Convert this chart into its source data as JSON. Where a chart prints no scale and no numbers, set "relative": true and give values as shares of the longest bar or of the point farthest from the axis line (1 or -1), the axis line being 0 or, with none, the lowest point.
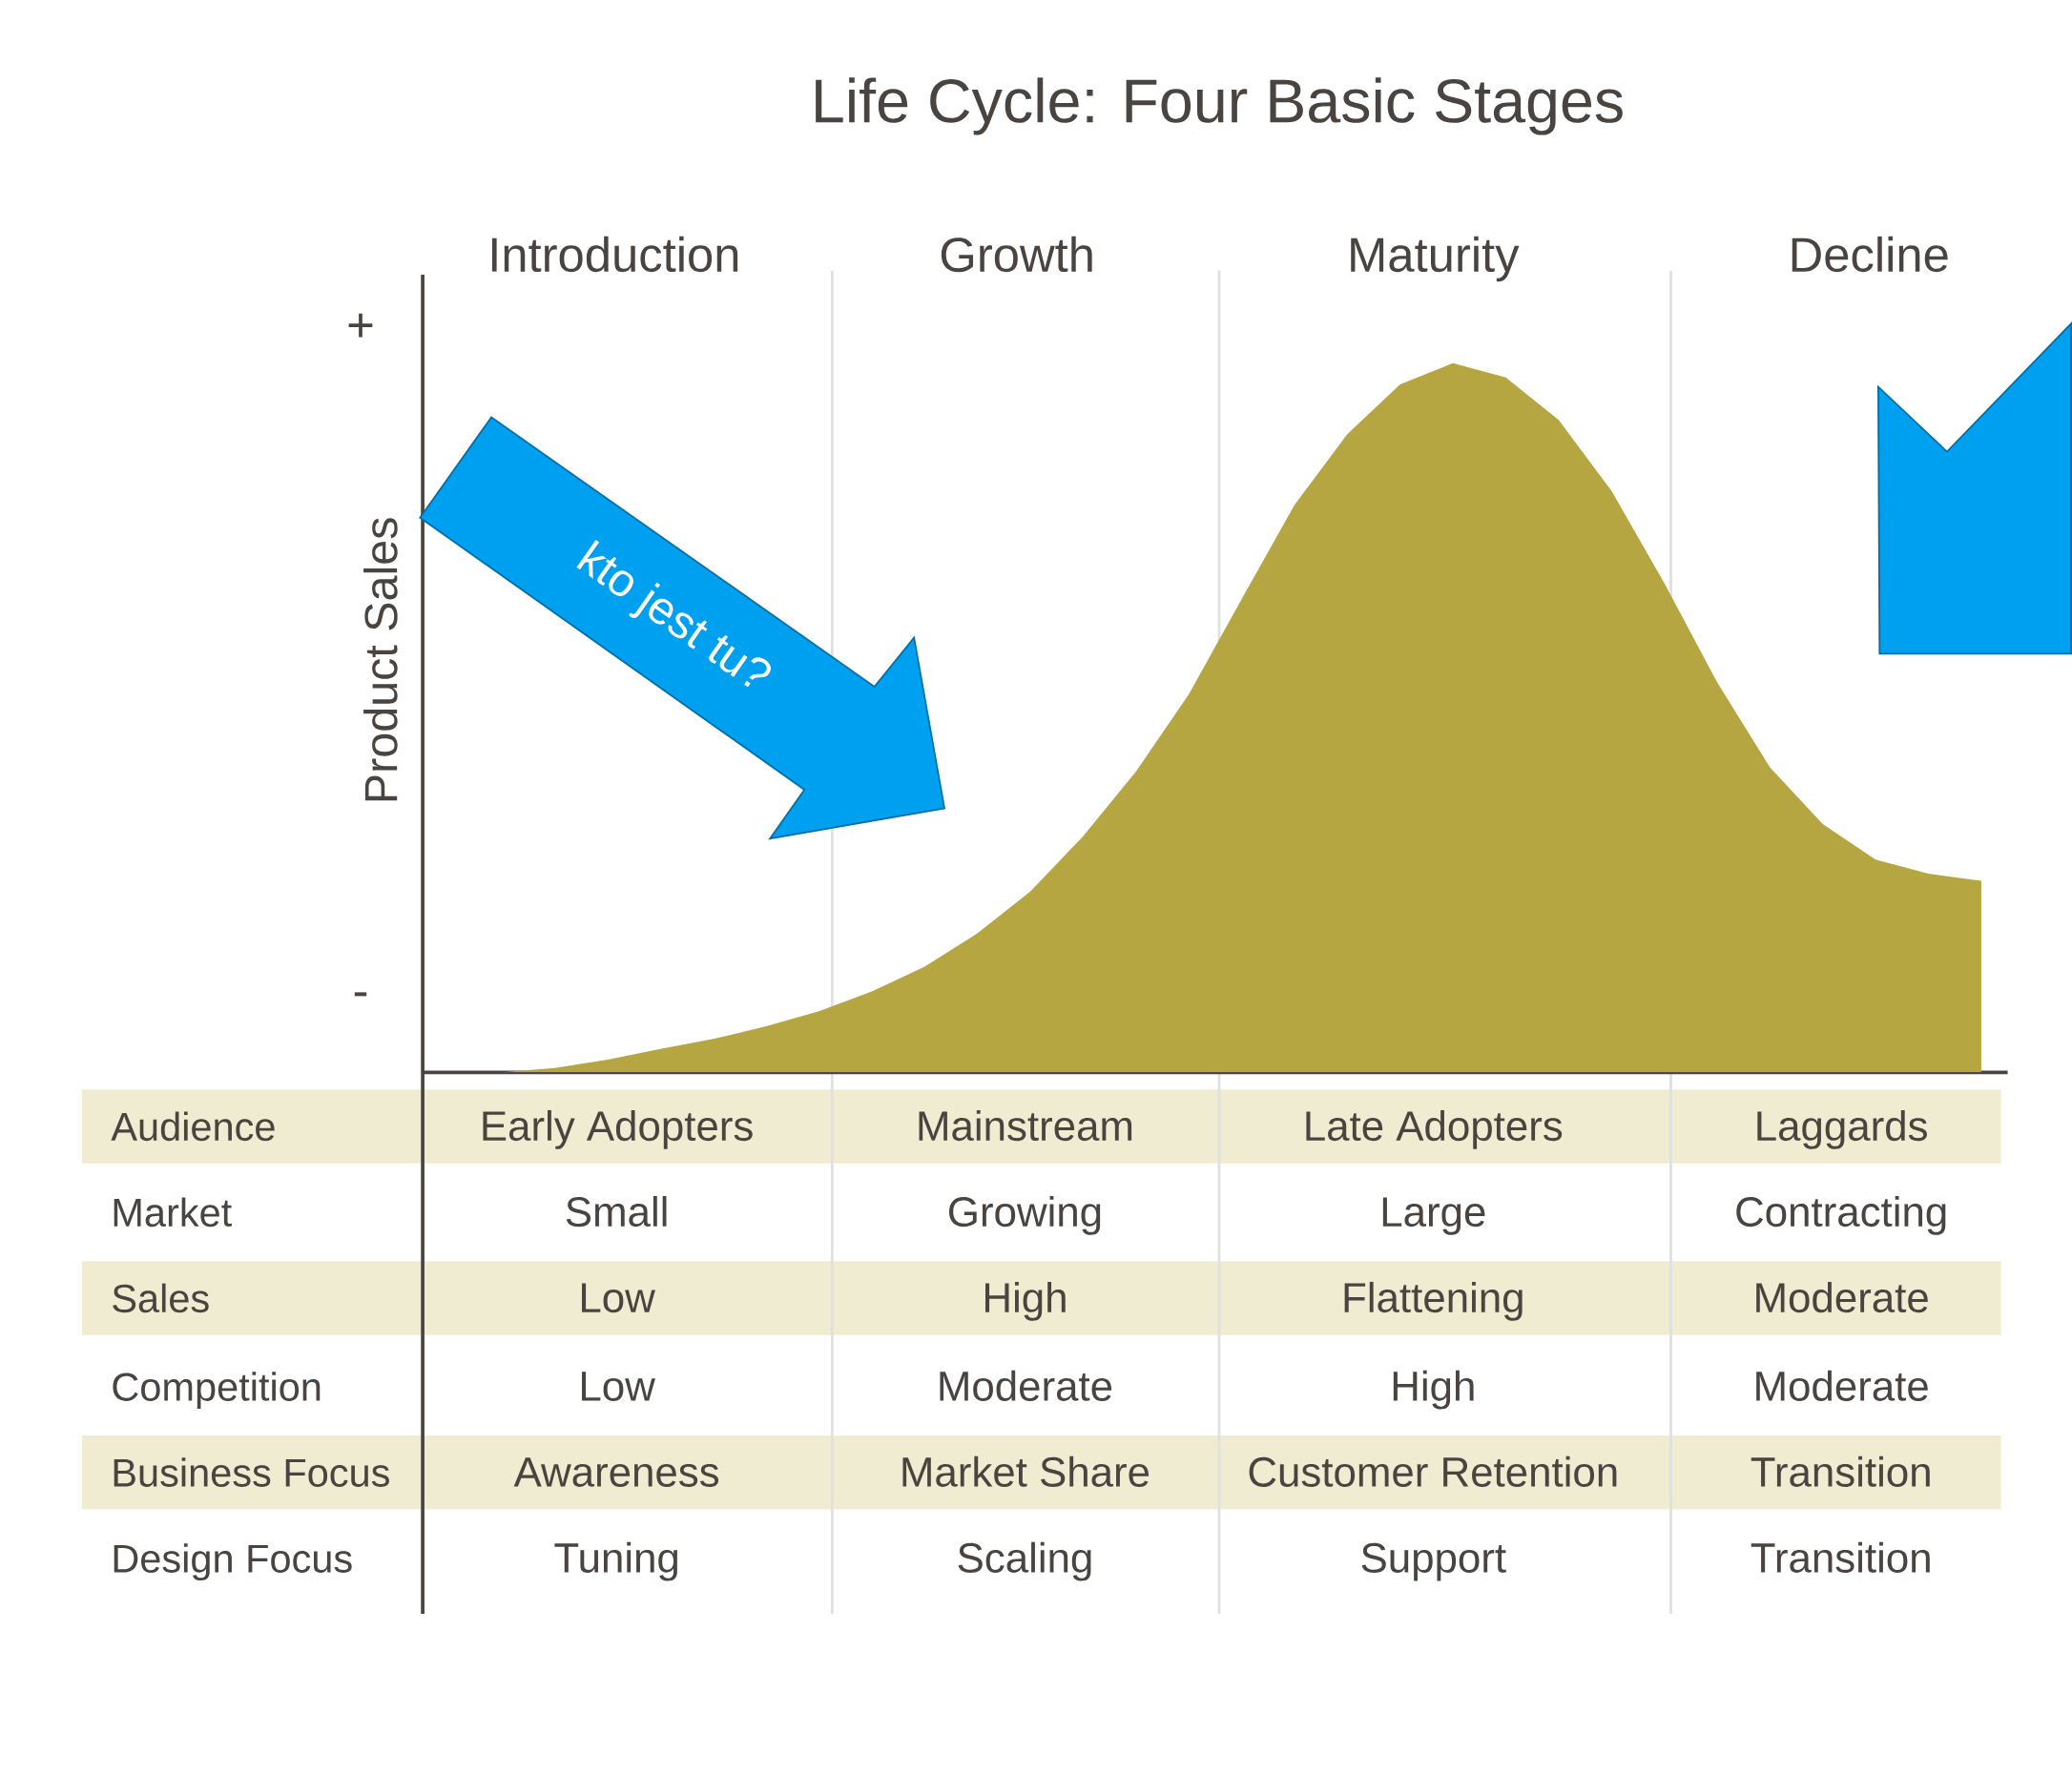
{
  "chart_data": {
    "type": "area",
    "title": "Life Cycle: Four Basic Stages",
    "ylabel": "Product Sales",
    "relative": true,
    "color": "#b5a642",
    "categories": [
      null,
      null,
      null,
      null,
      null,
      null,
      null,
      null,
      null,
      null,
      null,
      null,
      null,
      null,
      null,
      null,
      null,
      null,
      null,
      null,
      null,
      null,
      null,
      null,
      null,
      null,
      null,
      null,
      null
    ],
    "values": [
      0,
      0.006,
      0.018,
      0.033,
      0.047,
      0.065,
      0.086,
      0.114,
      0.149,
      0.196,
      0.255,
      0.333,
      0.424,
      0.533,
      0.667,
      0.8,
      0.9,
      0.97,
      1,
      0.98,
      0.92,
      0.82,
      0.69,
      0.55,
      0.43,
      0.35,
      0.3,
      0.28,
      0.27
    ],
    "annotations": [
      "Introduction",
      "Growth",
      "Maturity",
      "Decline",
      "Audience",
      "Early Adopters",
      "Mainstream",
      "Late Adopters",
      "Laggards",
      "Market",
      "Small",
      "Growing",
      "Large",
      "Contracting",
      "Sales",
      "Low",
      "High",
      "Flattening",
      "Moderate",
      "Competition",
      "Low",
      "Moderate",
      "High",
      "Moderate",
      "Business Focus",
      "Awareness",
      "Market Share",
      "Customer Retention",
      "Transition",
      "Design Focus",
      "Tuning",
      "Scaling",
      "Support",
      "Transition",
      "+",
      "-",
      "kto jest tu?"
    ]
  }
}
